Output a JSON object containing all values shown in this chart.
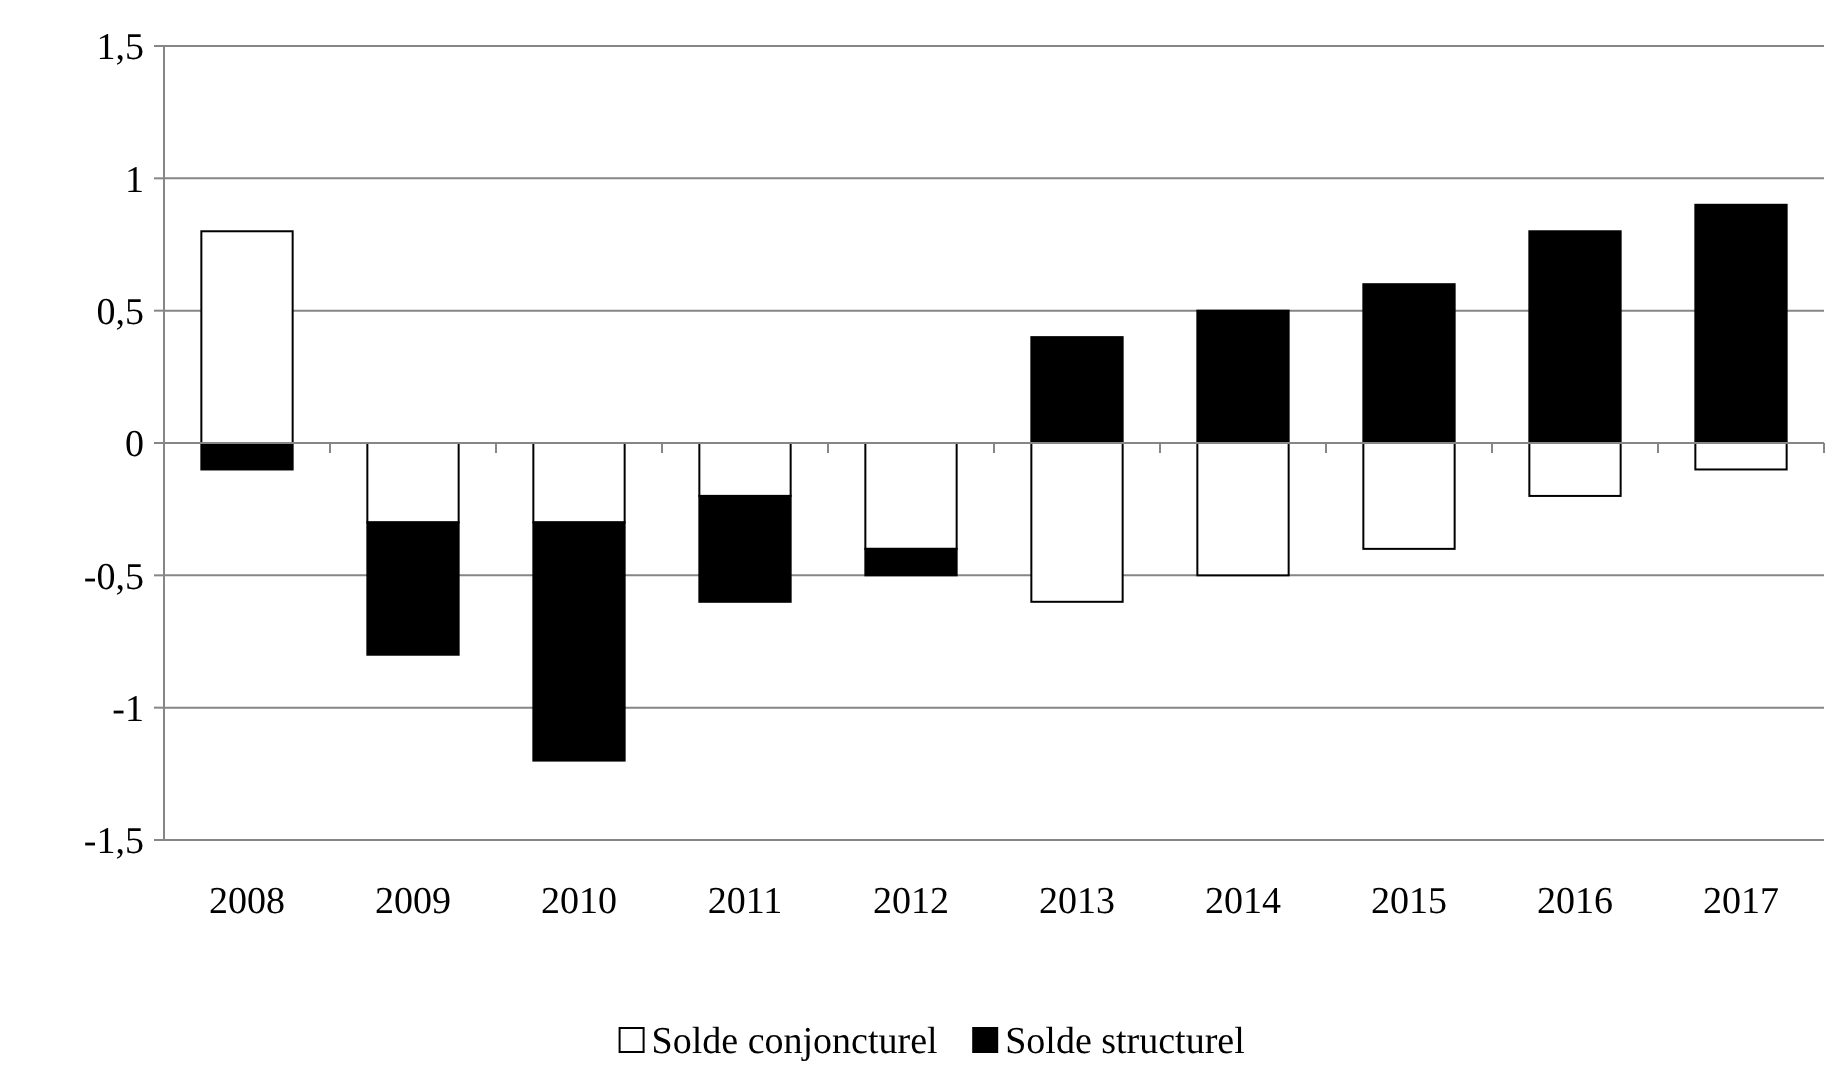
{
  "chart_data": {
    "type": "bar",
    "stacked": true,
    "categories": [
      "2008",
      "2009",
      "2010",
      "2011",
      "2012",
      "2013",
      "2014",
      "2015",
      "2016",
      "2017"
    ],
    "series": [
      {
        "name": "Solde conjoncturel",
        "color": "#ffffff",
        "values": [
          0.8,
          -0.3,
          -0.3,
          -0.2,
          -0.4,
          -0.6,
          -0.5,
          -0.4,
          -0.2,
          -0.1
        ]
      },
      {
        "name": "Solde structurel",
        "color": "#000000",
        "values": [
          -0.1,
          -0.5,
          -0.9,
          -0.4,
          -0.1,
          0.4,
          0.5,
          0.6,
          0.8,
          0.9
        ]
      }
    ],
    "ylim": [
      -1.5,
      1.5
    ],
    "yticks": [
      {
        "value": -1.5,
        "label": "-1,5"
      },
      -1,
      {
        "value": -0.5,
        "label": "-0,5"
      },
      0,
      {
        "value": 0.5,
        "label": "0,5"
      },
      1,
      {
        "value": 1.5,
        "label": "1,5"
      }
    ],
    "grid": "y",
    "legend": "bottom"
  }
}
